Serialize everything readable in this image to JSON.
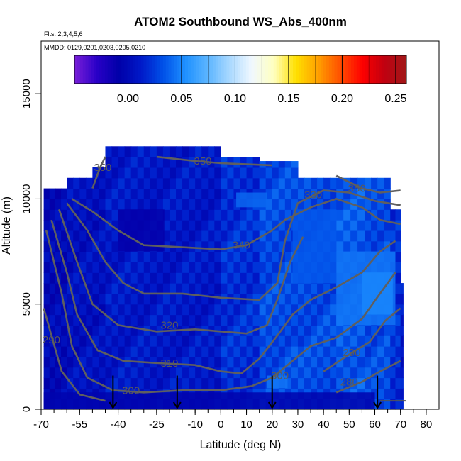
{
  "chart_data": {
    "type": "heatmap",
    "title": "ATOM2 Southbound WS_Abs_400nm",
    "flights_label": "Flts: 2,3,4,5,6",
    "dates_label": "MMDD: 0129,0201,0203,0205,0210",
    "xlabel": "Latitude (deg N)",
    "ylabel": "Altitude (m)",
    "xlim": [
      -70,
      85
    ],
    "ylim": [
      0,
      17500
    ],
    "x_ticks": [
      -70,
      -55,
      -40,
      -25,
      -10,
      0,
      10,
      20,
      30,
      40,
      50,
      60,
      70,
      80
    ],
    "y_ticks": [
      0,
      5000,
      10000,
      15000
    ],
    "colorbar": {
      "range": [
        -0.05,
        0.26
      ],
      "ticks": [
        0.0,
        0.05,
        0.1,
        0.15,
        0.2,
        0.25
      ],
      "tick_labels": [
        "0.00",
        "0.05",
        "0.10",
        "0.15",
        "0.20",
        "0.25"
      ],
      "colors": [
        "#7a1fd8",
        "#2a00c8",
        "#0000a8",
        "#0018c8",
        "#0050e8",
        "#1e90ff",
        "#5ab4ff",
        "#a8d8ff",
        "#f0f8ff",
        "#ffffc0",
        "#ffe000",
        "#ffa000",
        "#ff5000",
        "#ff0000",
        "#c00010",
        "#a01818"
      ]
    },
    "columns": [
      {
        "x0": -69,
        "x1": -60,
        "ytop": 10500,
        "v": 0.0
      },
      {
        "x0": -60,
        "x1": -50,
        "ytop": 11000,
        "v": 0.005
      },
      {
        "x0": -50,
        "x1": -45,
        "ytop": 11500,
        "v": 0.005
      },
      {
        "x0": -45,
        "x1": 0,
        "ytop": 12500,
        "v": 0.01
      },
      {
        "x0": 0,
        "x1": 15,
        "ytop": 12000,
        "v": 0.02
      },
      {
        "x0": 15,
        "x1": 30,
        "ytop": 11800,
        "v": 0.03
      },
      {
        "x0": 30,
        "x1": 45,
        "ytop": 11200,
        "v": 0.03
      },
      {
        "x0": 45,
        "x1": 56,
        "ytop": 11200,
        "v": 0.035
      },
      {
        "x0": 56,
        "x1": 66,
        "ytop": 11200,
        "v": 0.03
      },
      {
        "x0": 66,
        "x1": 70,
        "ytop": 9500,
        "v": 0.02
      },
      {
        "x0": 70,
        "x1": 71,
        "ytop": 6000,
        "v": 0.01
      }
    ],
    "patches": [
      {
        "x0": 45,
        "x1": 68,
        "y0": 4000,
        "y1": 7500,
        "v": 0.045
      },
      {
        "x0": 55,
        "x1": 67,
        "y0": 4500,
        "y1": 6500,
        "v": 0.05
      },
      {
        "x0": 28,
        "x1": 45,
        "y0": 6000,
        "y1": 9500,
        "v": 0.035
      },
      {
        "x0": 6,
        "x1": 18,
        "y0": 9600,
        "y1": 10300,
        "v": 0.04
      },
      {
        "x0": 18,
        "x1": 26,
        "y0": 1000,
        "y1": 1600,
        "v": 0.045
      },
      {
        "x0": -40,
        "x1": -22,
        "y0": 7500,
        "y1": 9500,
        "v": -0.01
      },
      {
        "x0": -69,
        "x1": 60,
        "y0": 0,
        "y1": 800,
        "v": -0.005
      }
    ],
    "contours": [
      {
        "label": "350",
        "points": [
          [
            -50,
            10500
          ],
          [
            -47,
            11500
          ],
          [
            -45,
            12000
          ]
        ]
      },
      {
        "label": "350",
        "points": [
          [
            -25,
            12000
          ],
          [
            -10,
            11800
          ],
          [
            0,
            11700
          ],
          [
            20,
            11600
          ]
        ]
      },
      {
        "label": "350",
        "points": [
          [
            45,
            11100
          ],
          [
            50,
            10800
          ],
          [
            55,
            10500
          ],
          [
            62,
            10300
          ],
          [
            70,
            10400
          ]
        ]
      },
      {
        "label": "340",
        "points": [
          [
            -58,
            10000
          ],
          [
            -50,
            9400
          ],
          [
            -40,
            8500
          ],
          [
            -30,
            7800
          ],
          [
            -15,
            7700
          ],
          [
            0,
            7600
          ],
          [
            10,
            7800
          ],
          [
            20,
            8500
          ],
          [
            25,
            9000
          ],
          [
            35,
            9600
          ],
          [
            45,
            10000
          ],
          [
            55,
            9600
          ],
          [
            62,
            9000
          ],
          [
            70,
            8800
          ]
        ]
      },
      {
        "label": "330",
        "points": [
          [
            -60,
            9800
          ],
          [
            -52,
            8500
          ],
          [
            -45,
            7000
          ],
          [
            -38,
            6000
          ],
          [
            -30,
            5500
          ],
          [
            -15,
            5500
          ],
          [
            0,
            5300
          ],
          [
            15,
            5200
          ],
          [
            22,
            6000
          ],
          [
            25,
            8000
          ],
          [
            30,
            9800
          ],
          [
            40,
            10400
          ],
          [
            50,
            10300
          ],
          [
            60,
            9900
          ],
          [
            70,
            9700
          ]
        ]
      },
      {
        "label": "320",
        "points": [
          [
            -63,
            9500
          ],
          [
            -56,
            7000
          ],
          [
            -50,
            5000
          ],
          [
            -40,
            4000
          ],
          [
            -25,
            3700
          ],
          [
            -10,
            3800
          ],
          [
            0,
            3700
          ],
          [
            10,
            3600
          ],
          [
            18,
            4000
          ],
          [
            22,
            5200
          ],
          [
            27,
            7000
          ],
          [
            32,
            8200
          ]
        ]
      },
      {
        "label": "310",
        "points": [
          [
            -66,
            9000
          ],
          [
            -60,
            6500
          ],
          [
            -56,
            4500
          ],
          [
            -48,
            2800
          ],
          [
            -38,
            2300
          ],
          [
            -25,
            2200
          ],
          [
            -10,
            2100
          ],
          [
            0,
            1800
          ],
          [
            8,
            1700
          ],
          [
            15,
            2400
          ],
          [
            22,
            3500
          ],
          [
            28,
            4500
          ],
          [
            35,
            5200
          ],
          [
            45,
            5800
          ],
          [
            55,
            6500
          ],
          [
            62,
            7500
          ],
          [
            68,
            8000
          ]
        ]
      },
      {
        "label": "300",
        "points": [
          [
            -68,
            8500
          ],
          [
            -62,
            5500
          ],
          [
            -58,
            3000
          ],
          [
            -52,
            1500
          ],
          [
            -42,
            900
          ],
          [
            -30,
            800
          ],
          [
            -15,
            900
          ],
          [
            0,
            900
          ],
          [
            12,
            1100
          ],
          [
            20,
            1500
          ],
          [
            28,
            2300
          ],
          [
            35,
            3000
          ],
          [
            45,
            3400
          ],
          [
            55,
            4300
          ],
          [
            62,
            5500
          ],
          [
            68,
            6500
          ]
        ]
      },
      {
        "label": "290",
        "points": [
          [
            -69,
            4800
          ],
          [
            -62,
            1800
          ],
          [
            -55,
            700
          ],
          [
            -45,
            400
          ]
        ]
      },
      {
        "label": "290",
        "points": [
          [
            40,
            1800
          ],
          [
            50,
            2600
          ],
          [
            58,
            3200
          ],
          [
            64,
            4200
          ],
          [
            70,
            4800
          ]
        ]
      },
      {
        "label": "280",
        "points": [
          [
            45,
            800
          ],
          [
            55,
            1300
          ],
          [
            62,
            1800
          ],
          [
            70,
            2300
          ]
        ]
      }
    ],
    "contour_labels": [
      {
        "text": "350",
        "x": -46,
        "y": 11500
      },
      {
        "text": "350",
        "x": -7,
        "y": 11800
      },
      {
        "text": "350",
        "x": 53,
        "y": 10500
      },
      {
        "text": "340",
        "x": 8,
        "y": 7800
      },
      {
        "text": "330",
        "x": 36,
        "y": 10200
      },
      {
        "text": "320",
        "x": -20,
        "y": 4000
      },
      {
        "text": "310",
        "x": -20,
        "y": 2200
      },
      {
        "text": "300",
        "x": -35,
        "y": 900
      },
      {
        "text": "300",
        "x": 23,
        "y": 1600
      },
      {
        "text": "290",
        "x": -66,
        "y": 3300
      },
      {
        "text": "290",
        "x": 51,
        "y": 2700
      },
      {
        "text": "280",
        "x": 50,
        "y": 1300
      }
    ],
    "arrows": [
      -42,
      -17,
      20,
      61
    ],
    "legend_line": {
      "x0": 62,
      "x1": 72,
      "y": 400
    }
  }
}
